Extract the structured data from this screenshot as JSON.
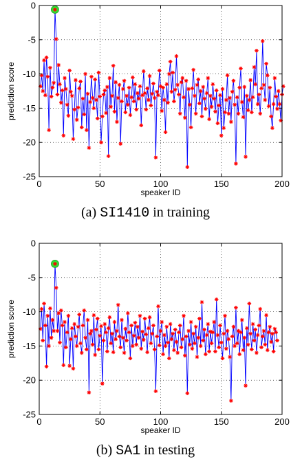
{
  "chart_data": [
    {
      "type": "line",
      "caption": {
        "prefix": "(a)",
        "code": "SI1410",
        "suffix": "in training"
      },
      "xlabel": "speaker ID",
      "ylabel": "prediction score",
      "xlim": [
        0,
        200
      ],
      "ylim": [
        -25,
        0
      ],
      "xticks": [
        0,
        50,
        100,
        150,
        200
      ],
      "yticks": [
        0,
        -5,
        -10,
        -15,
        -20,
        -25
      ],
      "grid": true,
      "line_color": "#0000ff",
      "marker_color": "#ff0000",
      "highlight_color": "#33dd33",
      "highlight": {
        "x": 13,
        "y": -0.6
      },
      "x_start": 1,
      "x_step": 1,
      "values": [
        -11.8,
        -10.2,
        -12.5,
        -8.0,
        -13.1,
        -7.6,
        -10.4,
        -18.2,
        -9.1,
        -13.3,
        -12.0,
        -11.3,
        -0.6,
        -4.9,
        -13.0,
        -8.7,
        -11.5,
        -14.2,
        -12.4,
        -19.0,
        -10.6,
        -12.2,
        -14.5,
        -16.1,
        -9.5,
        -12.6,
        -13.2,
        -19.5,
        -15.2,
        -10.9,
        -16.7,
        -14.9,
        -12.1,
        -11.1,
        -17.8,
        -13.6,
        -15.9,
        -10.0,
        -18.2,
        -12.9,
        -20.8,
        -14.1,
        -10.4,
        -13.5,
        -15.0,
        -10.8,
        -13.8,
        -16.5,
        -9.8,
        -13.3,
        -20.0,
        -16.2,
        -13.0,
        -12.4,
        -15.7,
        -11.9,
        -22.0,
        -10.6,
        -14.8,
        -13.2,
        -8.8,
        -15.5,
        -11.2,
        -17.0,
        -13.5,
        -11.6,
        -20.2,
        -14.0,
        -12.2,
        -11.0,
        -15.6,
        -13.2,
        -14.5,
        -12.0,
        -16.0,
        -13.4,
        -10.5,
        -14.0,
        -11.5,
        -15.2,
        -12.8,
        -13.6,
        -11.8,
        -17.5,
        -13.1,
        -9.6,
        -12.8,
        -15.2,
        -12.1,
        -13.8,
        -10.3,
        -14.6,
        -12.9,
        -11.4,
        -13.5,
        -22.2,
        -12.6,
        -13.1,
        -9.5,
        -11.8,
        -15.4,
        -12.0,
        -13.8,
        -18.5,
        -11.5,
        -14.2,
        -10.0,
        -8.2,
        -12.6,
        -9.8,
        -14.0,
        -12.3,
        -7.4,
        -11.6,
        -13.0,
        -15.8,
        -11.2,
        -10.6,
        -13.4,
        -16.4,
        -11.0,
        -23.6,
        -12.2,
        -14.5,
        -17.8,
        -12.1,
        -9.4,
        -13.2,
        -15.8,
        -11.6,
        -10.8,
        -14.3,
        -12.5,
        -16.2,
        -11.9,
        -13.6,
        -15.1,
        -12.8,
        -10.6,
        -16.6,
        -13.2,
        -14.8,
        -11.5,
        -13.6,
        -15.5,
        -12.4,
        -17.2,
        -14.6,
        -13.1,
        -19.0,
        -12.2,
        -17.9,
        -15.6,
        -13.8,
        -10.2,
        -15.8,
        -13.5,
        -17.0,
        -12.6,
        -11.0,
        -14.5,
        -23.1,
        -13.4,
        -15.8,
        -12.0,
        -9.2,
        -14.1,
        -16.3,
        -11.9,
        -22.1,
        -13.2,
        -15.3,
        -13.8,
        -10.9,
        -15.6,
        -13.4,
        -9.0,
        -11.5,
        -6.6,
        -14.4,
        -13.0,
        -15.8,
        -12.1,
        -5.2,
        -11.6,
        -13.8,
        -8.5,
        -10.2,
        -14.7,
        -12.0,
        -16.2,
        -17.9,
        -14.4,
        -10.6,
        -13.3,
        -15.1,
        -12.5,
        -14.4,
        -16.8,
        -13.0,
        -11.8
      ]
    },
    {
      "type": "line",
      "caption": {
        "prefix": "(b)",
        "code": "SA1",
        "suffix": "in testing"
      },
      "xlabel": "speaker ID",
      "ylabel": "prediction score",
      "xlim": [
        0,
        200
      ],
      "ylim": [
        -25,
        0
      ],
      "xticks": [
        0,
        50,
        100,
        150,
        200
      ],
      "yticks": [
        0,
        -5,
        -10,
        -15,
        -20,
        -25
      ],
      "grid": true,
      "line_color": "#0000ff",
      "marker_color": "#ff0000",
      "highlight_color": "#33dd33",
      "highlight": {
        "x": 13,
        "y": -3.0
      },
      "x_start": 1,
      "x_step": 1,
      "values": [
        -12.5,
        -9.6,
        -14.2,
        -8.8,
        -12.0,
        -18.0,
        -10.6,
        -15.0,
        -9.5,
        -13.8,
        -11.2,
        -12.8,
        -3.0,
        -6.5,
        -12.8,
        -10.2,
        -14.5,
        -9.8,
        -12.0,
        -17.8,
        -11.5,
        -15.2,
        -13.0,
        -10.6,
        -17.9,
        -14.0,
        -12.4,
        -18.3,
        -11.8,
        -13.6,
        -15.0,
        -12.2,
        -10.4,
        -14.6,
        -16.0,
        -12.0,
        -9.8,
        -13.8,
        -15.5,
        -11.2,
        -21.8,
        -13.2,
        -12.8,
        -14.8,
        -10.5,
        -16.3,
        -12.6,
        -11.0,
        -15.5,
        -13.5,
        -12.1,
        -20.5,
        -14.2,
        -11.8,
        -13.0,
        -15.8,
        -12.4,
        -10.8,
        -14.6,
        -13.2,
        -15.9,
        -11.5,
        -14.0,
        -12.8,
        -9.0,
        -13.6,
        -15.2,
        -11.2,
        -13.8,
        -16.0,
        -12.5,
        -14.2,
        -10.2,
        -13.0,
        -16.8,
        -12.0,
        -15.0,
        -13.5,
        -11.6,
        -14.8,
        -12.2,
        -13.8,
        -10.6,
        -15.4,
        -12.9,
        -14.1,
        -11.0,
        -13.3,
        -15.9,
        -12.4,
        -10.8,
        -14.6,
        -13.2,
        -12.0,
        -15.5,
        -21.6,
        -13.6,
        -9.2,
        -14.9,
        -12.8,
        -11.5,
        -16.2,
        -13.4,
        -15.0,
        -12.2,
        -14.5,
        -16.8,
        -11.8,
        -14.0,
        -13.2,
        -15.6,
        -12.6,
        -14.4,
        -16.0,
        -13.0,
        -12.0,
        -15.2,
        -14.0,
        -10.6,
        -16.4,
        -13.6,
        -21.9,
        -12.8,
        -14.8,
        -11.5,
        -15.4,
        -13.2,
        -14.6,
        -12.2,
        -16.6,
        -13.8,
        -11.0,
        -15.0,
        -8.6,
        -14.2,
        -12.6,
        -16.2,
        -13.4,
        -11.8,
        -15.8,
        -12.9,
        -14.6,
        -13.0,
        -11.5,
        -15.8,
        -8.2,
        -13.4,
        -15.2,
        -12.0,
        -14.5,
        -16.8,
        -13.2,
        -10.6,
        -15.4,
        -12.8,
        -14.0,
        -16.6,
        -23.0,
        -13.6,
        -12.2,
        -15.0,
        -9.4,
        -14.6,
        -12.8,
        -16.2,
        -13.0,
        -11.2,
        -15.6,
        -13.8,
        -20.8,
        -12.4,
        -14.8,
        -8.8,
        -13.2,
        -15.5,
        -11.8,
        -14.2,
        -12.6,
        -16.0,
        -13.4,
        -12.0,
        -9.6,
        -15.2,
        -13.6,
        -12.8,
        -14.8,
        -10.5,
        -15.6,
        -13.0,
        -12.2,
        -14.4,
        -13.2,
        -15.8,
        -12.5,
        -13.0,
        -14.2
      ]
    }
  ]
}
